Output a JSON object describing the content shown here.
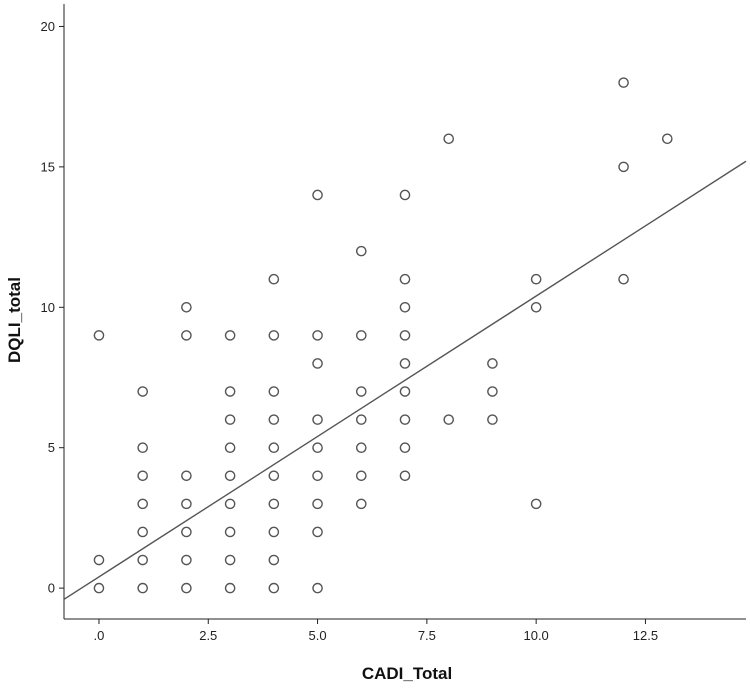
{
  "chart_data": {
    "type": "scatter",
    "title": "",
    "xlabel": "CADI_Total",
    "ylabel": "DQLI_total",
    "xlim": [
      -0.8,
      14.8
    ],
    "ylim": [
      -1.1,
      20.8
    ],
    "x_ticks": [
      0,
      2.5,
      5.0,
      7.5,
      10.0,
      12.5
    ],
    "x_tick_labels": [
      ".0",
      "2.5",
      "5.0",
      "7.5",
      "10.0",
      "12.5"
    ],
    "y_ticks": [
      0,
      5,
      10,
      15,
      20
    ],
    "y_tick_labels": [
      "0",
      "5",
      "10",
      "15",
      "20"
    ],
    "grid": false,
    "legend": "none",
    "marker": "open-circle",
    "colors": {
      "points": "#555555",
      "fit_line": "#555555",
      "axis": "#222222"
    },
    "points": [
      [
        0,
        0
      ],
      [
        0,
        1
      ],
      [
        0,
        9
      ],
      [
        1,
        0
      ],
      [
        1,
        1
      ],
      [
        1,
        2
      ],
      [
        1,
        3
      ],
      [
        1,
        4
      ],
      [
        1,
        5
      ],
      [
        1,
        7
      ],
      [
        2,
        0
      ],
      [
        2,
        1
      ],
      [
        2,
        2
      ],
      [
        2,
        3
      ],
      [
        2,
        4
      ],
      [
        2,
        9
      ],
      [
        2,
        10
      ],
      [
        3,
        0
      ],
      [
        3,
        1
      ],
      [
        3,
        2
      ],
      [
        3,
        3
      ],
      [
        3,
        4
      ],
      [
        3,
        5
      ],
      [
        3,
        6
      ],
      [
        3,
        7
      ],
      [
        3,
        9
      ],
      [
        4,
        0
      ],
      [
        4,
        1
      ],
      [
        4,
        2
      ],
      [
        4,
        3
      ],
      [
        4,
        4
      ],
      [
        4,
        5
      ],
      [
        4,
        6
      ],
      [
        4,
        7
      ],
      [
        4,
        9
      ],
      [
        4,
        11
      ],
      [
        5,
        0
      ],
      [
        5,
        2
      ],
      [
        5,
        3
      ],
      [
        5,
        4
      ],
      [
        5,
        5
      ],
      [
        5,
        6
      ],
      [
        5,
        8
      ],
      [
        5,
        9
      ],
      [
        5,
        14
      ],
      [
        6,
        3
      ],
      [
        6,
        4
      ],
      [
        6,
        5
      ],
      [
        6,
        6
      ],
      [
        6,
        7
      ],
      [
        6,
        9
      ],
      [
        6,
        12
      ],
      [
        7,
        4
      ],
      [
        7,
        5
      ],
      [
        7,
        6
      ],
      [
        7,
        7
      ],
      [
        7,
        8
      ],
      [
        7,
        9
      ],
      [
        7,
        10
      ],
      [
        7,
        11
      ],
      [
        7,
        14
      ],
      [
        8,
        6
      ],
      [
        8,
        16
      ],
      [
        9,
        6
      ],
      [
        9,
        7
      ],
      [
        9,
        8
      ],
      [
        10,
        3
      ],
      [
        10,
        10
      ],
      [
        10,
        11
      ],
      [
        12,
        11
      ],
      [
        12,
        15
      ],
      [
        12,
        18
      ],
      [
        13,
        16
      ]
    ],
    "fit_line": {
      "from": [
        -0.8,
        -0.4
      ],
      "to": [
        14.8,
        15.2
      ]
    }
  }
}
